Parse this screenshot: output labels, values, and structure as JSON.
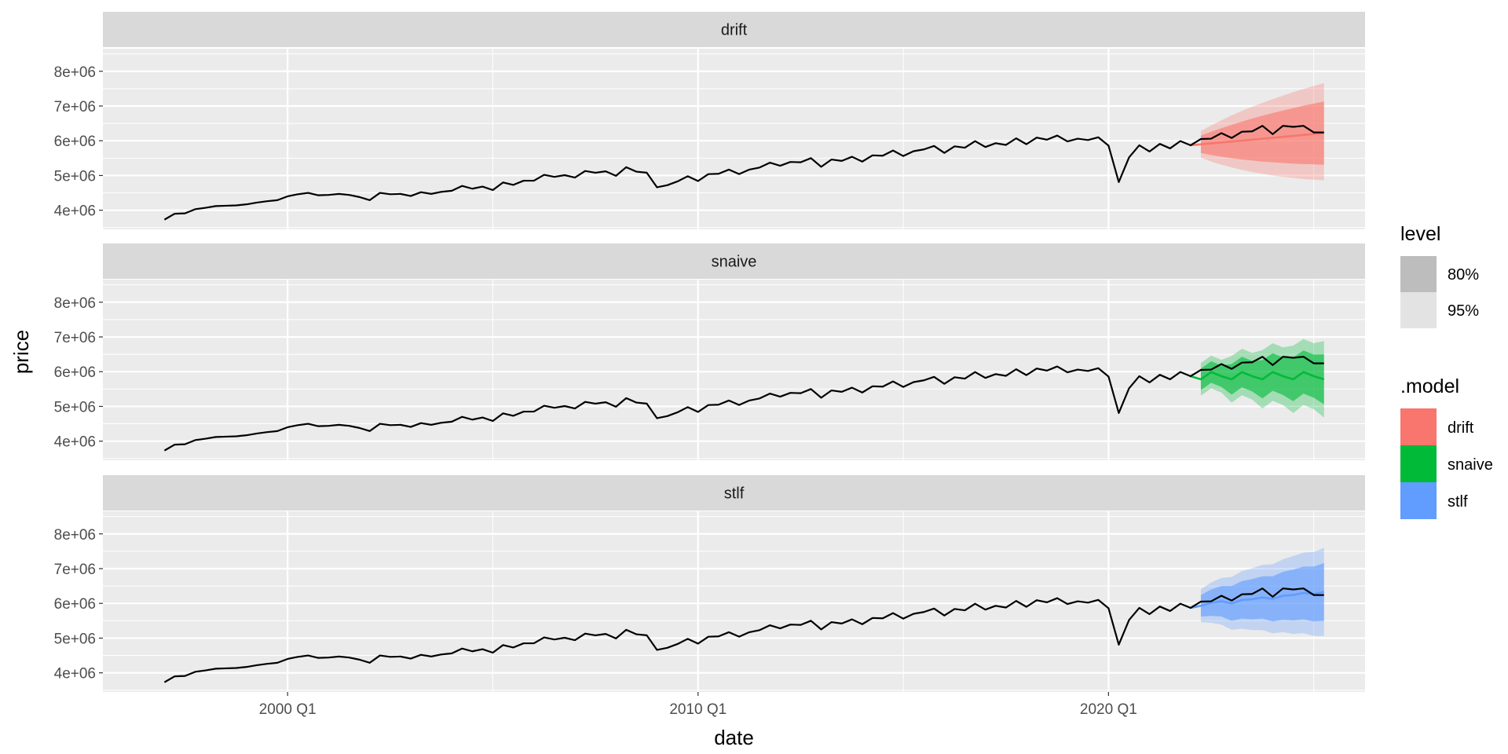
{
  "chart_data": {
    "type": "line",
    "xlabel": "date",
    "ylabel": "price",
    "x_ticks": [
      "2000 Q1",
      "2010 Q1",
      "2020 Q1"
    ],
    "y_ticks": [
      "4e+06",
      "5e+06",
      "6e+06",
      "7e+06",
      "8e+06"
    ],
    "ylim": [
      3450000,
      8650000
    ],
    "xlim": [
      "1995 Q3",
      "2026 Q2"
    ],
    "grid": true,
    "legend_position": "right",
    "facets": [
      "drift",
      "snaive",
      "stlf"
    ],
    "history": {
      "start": "1997 Q1",
      "values": [
        3730000,
        3900000,
        3910000,
        4030000,
        4070000,
        4120000,
        4130000,
        4140000,
        4170000,
        4220000,
        4260000,
        4290000,
        4400000,
        4460000,
        4500000,
        4430000,
        4440000,
        4470000,
        4440000,
        4380000,
        4290000,
        4500000,
        4460000,
        4470000,
        4410000,
        4520000,
        4470000,
        4530000,
        4560000,
        4700000,
        4620000,
        4680000,
        4580000,
        4800000,
        4730000,
        4850000,
        4850000,
        5020000,
        4960000,
        5010000,
        4940000,
        5130000,
        5080000,
        5120000,
        4990000,
        5240000,
        5110000,
        5080000,
        4660000,
        4720000,
        4830000,
        4980000,
        4840000,
        5040000,
        5050000,
        5170000,
        5040000,
        5170000,
        5230000,
        5370000,
        5280000,
        5390000,
        5380000,
        5500000,
        5250000,
        5460000,
        5420000,
        5540000,
        5400000,
        5580000,
        5570000,
        5720000,
        5560000,
        5700000,
        5750000,
        5850000,
        5650000,
        5840000,
        5800000,
        5990000,
        5820000,
        5930000,
        5880000,
        6070000,
        5900000,
        6090000,
        6030000,
        6150000,
        5980000,
        6060000,
        6020000,
        6100000,
        5860000,
        4810000,
        5520000,
        5870000,
        5690000,
        5910000,
        5780000,
        5990000,
        5870000
      ]
    },
    "forecast_x": [
      "2022 Q2",
      "2022 Q3",
      "2022 Q4",
      "2023 Q1",
      "2023 Q2",
      "2023 Q3",
      "2023 Q4",
      "2024 Q1",
      "2024 Q2",
      "2024 Q3",
      "2024 Q4",
      "2025 Q1",
      "2025 Q2"
    ],
    "actual_future": [
      6050000,
      6060000,
      6220000,
      6080000,
      6260000,
      6270000,
      6430000,
      6190000,
      6430000,
      6400000,
      6430000,
      6240000,
      6240000
    ],
    "series": [
      {
        "name": "drift",
        "color": "#F8766D",
        "mean": [
          5897000,
          5924000,
          5951000,
          5978000,
          6005000,
          6032000,
          6059000,
          6086000,
          6113000,
          6140000,
          6167000,
          6194000,
          6221000
        ],
        "lo80": [
          5650000,
          5590000,
          5540000,
          5500000,
          5460000,
          5430000,
          5400000,
          5380000,
          5360000,
          5340000,
          5330000,
          5320000,
          5310000
        ],
        "hi80": [
          6150000,
          6260000,
          6360000,
          6460000,
          6550000,
          6640000,
          6720000,
          6800000,
          6870000,
          6940000,
          7010000,
          7070000,
          7130000
        ],
        "lo95": [
          5510000,
          5400000,
          5310000,
          5230000,
          5160000,
          5100000,
          5050000,
          5000000,
          4960000,
          4930000,
          4900000,
          4880000,
          4860000
        ],
        "hi95": [
          6280000,
          6440000,
          6590000,
          6730000,
          6860000,
          6980000,
          7090000,
          7200000,
          7300000,
          7400000,
          7490000,
          7580000,
          7660000
        ]
      },
      {
        "name": "snaive",
        "color": "#00BA38",
        "mean": [
          5780000,
          5990000,
          5870000,
          5780000,
          5990000,
          5870000,
          5780000,
          5990000,
          5870000,
          5780000,
          5990000,
          5870000,
          5780000
        ],
        "lo80": [
          5470000,
          5680000,
          5560000,
          5340000,
          5550000,
          5430000,
          5230000,
          5450000,
          5330000,
          5150000,
          5370000,
          5250000,
          5060000
        ],
        "hi80": [
          6090000,
          6300000,
          6180000,
          6220000,
          6430000,
          6310000,
          6330000,
          6530000,
          6410000,
          6410000,
          6610000,
          6490000,
          6500000
        ],
        "lo95": [
          5310000,
          5520000,
          5400000,
          5110000,
          5320000,
          5200000,
          4940000,
          5160000,
          5040000,
          4810000,
          5040000,
          4920000,
          4680000
        ],
        "hi95": [
          6250000,
          6460000,
          6340000,
          6450000,
          6660000,
          6540000,
          6620000,
          6820000,
          6700000,
          6750000,
          6940000,
          6820000,
          6880000
        ]
      },
      {
        "name": "stlf",
        "color": "#619CFF",
        "mean": [
          5930000,
          6020000,
          6060000,
          6000000,
          6100000,
          6120000,
          6170000,
          6130000,
          6220000,
          6240000,
          6300000,
          6270000,
          6330000
        ],
        "lo80": [
          5620000,
          5640000,
          5620000,
          5500000,
          5560000,
          5540000,
          5560000,
          5480000,
          5530000,
          5510000,
          5540000,
          5480000,
          5500000
        ],
        "hi80": [
          6240000,
          6400000,
          6500000,
          6500000,
          6640000,
          6700000,
          6780000,
          6780000,
          6910000,
          6970000,
          7060000,
          7060000,
          7160000
        ],
        "lo95": [
          5460000,
          5440000,
          5390000,
          5240000,
          5270000,
          5230000,
          5230000,
          5140000,
          5170000,
          5120000,
          5140000,
          5060000,
          5060000
        ],
        "hi95": [
          6400000,
          6600000,
          6730000,
          6760000,
          6930000,
          7010000,
          7110000,
          7120000,
          7270000,
          7360000,
          7460000,
          7480000,
          7600000
        ]
      }
    ],
    "legend": {
      "level_title": "level",
      "levels": [
        {
          "label": "80%",
          "color": "#bdbdbd"
        },
        {
          "label": "95%",
          "color": "#e3e3e3"
        }
      ],
      "model_title": ".model",
      "models": [
        {
          "label": "drift",
          "color": "#F8766D"
        },
        {
          "label": "snaive",
          "color": "#00BA38"
        },
        {
          "label": "stlf",
          "color": "#619CFF"
        }
      ]
    }
  }
}
